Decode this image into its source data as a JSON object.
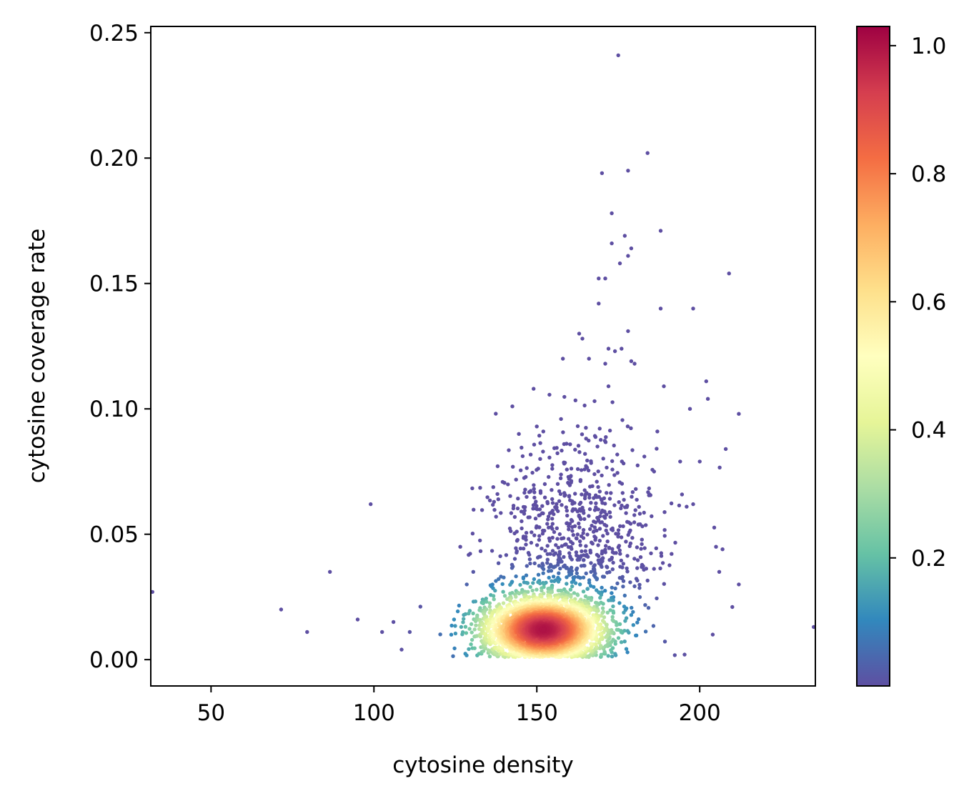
{
  "chart_data": {
    "type": "scatter",
    "title": "",
    "xlabel": "cytosine density",
    "ylabel": "cytosine coverage rate",
    "xlim": [
      31.5,
      235.5
    ],
    "ylim": [
      -0.0105,
      0.2525
    ],
    "xticks": [
      "50",
      "100",
      "150",
      "200"
    ],
    "xtick_values": [
      50,
      100,
      150,
      200
    ],
    "yticks": [
      "0.00",
      "0.05",
      "0.10",
      "0.15",
      "0.20",
      "0.25"
    ],
    "ytick_values": [
      0,
      0.05,
      0.1,
      0.15,
      0.2,
      0.25
    ],
    "grid": false,
    "colormap": "Spectral_r",
    "color_stops": [
      "#5e4fa2",
      "#3288bd",
      "#66c2a5",
      "#abdda4",
      "#e6f598",
      "#ffffbf",
      "#fee08b",
      "#fdae61",
      "#f46d43",
      "#d53e4f",
      "#9e0142"
    ],
    "colorbar": {
      "range": [
        0.0,
        1.03
      ],
      "ticks": [
        "0.2",
        "0.4",
        "0.6",
        "0.8",
        "1.0"
      ],
      "tick_values": [
        0.2,
        0.4,
        0.6,
        0.8,
        1.0
      ]
    },
    "core_distribution": {
      "count": 3400,
      "x_mean": 152,
      "x_sd": 9,
      "y_mean": 0.012,
      "y_sd": 0.0065,
      "y_min": 0.001
    },
    "halo_distribution": {
      "count": 850,
      "x_mean": 162,
      "x_sd": 13,
      "y_mean": 0.045,
      "y_sd": 0.022,
      "y_min": 0.001
    },
    "outliers": [
      {
        "x": 32,
        "y": 0.027
      },
      {
        "x": 71.5,
        "y": 0.02
      },
      {
        "x": 79.5,
        "y": 0.011
      },
      {
        "x": 86.5,
        "y": 0.035
      },
      {
        "x": 95,
        "y": 0.016
      },
      {
        "x": 99,
        "y": 0.062
      },
      {
        "x": 102.5,
        "y": 0.011
      },
      {
        "x": 106,
        "y": 0.015
      },
      {
        "x": 108.5,
        "y": 0.004
      },
      {
        "x": 111,
        "y": 0.011
      },
      {
        "x": 235,
        "y": 0.013
      },
      {
        "x": 175,
        "y": 0.241
      },
      {
        "x": 184,
        "y": 0.202
      },
      {
        "x": 170,
        "y": 0.194
      },
      {
        "x": 178,
        "y": 0.195
      },
      {
        "x": 173,
        "y": 0.178
      },
      {
        "x": 188,
        "y": 0.171
      },
      {
        "x": 177,
        "y": 0.169
      },
      {
        "x": 173,
        "y": 0.166
      },
      {
        "x": 179,
        "y": 0.164
      },
      {
        "x": 178,
        "y": 0.161
      },
      {
        "x": 175.5,
        "y": 0.158
      },
      {
        "x": 209,
        "y": 0.154
      },
      {
        "x": 169,
        "y": 0.152
      },
      {
        "x": 171,
        "y": 0.152
      },
      {
        "x": 169,
        "y": 0.142
      },
      {
        "x": 188,
        "y": 0.14
      },
      {
        "x": 198,
        "y": 0.14
      },
      {
        "x": 178,
        "y": 0.131
      },
      {
        "x": 163,
        "y": 0.13
      },
      {
        "x": 164,
        "y": 0.128
      },
      {
        "x": 172,
        "y": 0.124
      },
      {
        "x": 174,
        "y": 0.123
      },
      {
        "x": 176,
        "y": 0.124
      },
      {
        "x": 179,
        "y": 0.119
      },
      {
        "x": 180,
        "y": 0.118
      },
      {
        "x": 158,
        "y": 0.12
      },
      {
        "x": 166,
        "y": 0.12
      },
      {
        "x": 171,
        "y": 0.118
      },
      {
        "x": 202,
        "y": 0.111
      },
      {
        "x": 149,
        "y": 0.108
      },
      {
        "x": 172,
        "y": 0.109
      },
      {
        "x": 189,
        "y": 0.109
      },
      {
        "x": 202.5,
        "y": 0.104
      },
      {
        "x": 142.5,
        "y": 0.101
      },
      {
        "x": 197,
        "y": 0.1
      },
      {
        "x": 212,
        "y": 0.098
      },
      {
        "x": 187,
        "y": 0.091
      },
      {
        "x": 144.5,
        "y": 0.09
      },
      {
        "x": 150,
        "y": 0.093
      },
      {
        "x": 152,
        "y": 0.091
      },
      {
        "x": 208,
        "y": 0.084
      },
      {
        "x": 183,
        "y": 0.081
      },
      {
        "x": 194,
        "y": 0.079
      },
      {
        "x": 200,
        "y": 0.079
      },
      {
        "x": 186,
        "y": 0.075
      },
      {
        "x": 205,
        "y": 0.045
      },
      {
        "x": 207,
        "y": 0.044
      },
      {
        "x": 212,
        "y": 0.03
      },
      {
        "x": 210,
        "y": 0.021
      },
      {
        "x": 204,
        "y": 0.01
      },
      {
        "x": 206,
        "y": 0.035
      },
      {
        "x": 126.5,
        "y": 0.045
      },
      {
        "x": 128.5,
        "y": 0.03
      },
      {
        "x": 130.5,
        "y": 0.035
      },
      {
        "x": 137.5,
        "y": 0.057
      },
      {
        "x": 198,
        "y": 0.062
      },
      {
        "x": 196,
        "y": 0.061
      }
    ]
  }
}
